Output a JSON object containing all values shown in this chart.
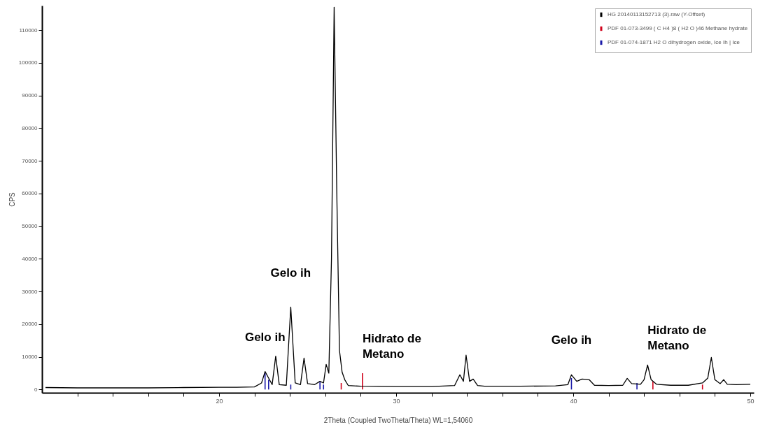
{
  "chart_data": {
    "type": "line",
    "xlabel": "2Theta (Coupled TwoTheta/Theta) WL=1,54060",
    "ylabel": "CPS",
    "xlim": [
      10.2,
      50
    ],
    "ylim": [
      -1000,
      117500
    ],
    "xticks": [
      {
        "value": 12,
        "label": null
      },
      {
        "value": 14,
        "label": null
      },
      {
        "value": 16,
        "label": null
      },
      {
        "value": 18,
        "label": null
      },
      20,
      {
        "value": 22,
        "label": null
      },
      {
        "value": 24,
        "label": null
      },
      {
        "value": 26,
        "label": null
      },
      {
        "value": 28,
        "label": null
      },
      30,
      {
        "value": 32,
        "label": null
      },
      {
        "value": 34,
        "label": null
      },
      {
        "value": 36,
        "label": null
      },
      {
        "value": 38,
        "label": null
      },
      40,
      {
        "value": 42,
        "label": null
      },
      {
        "value": 44,
        "label": null
      },
      {
        "value": 46,
        "label": null
      },
      {
        "value": 48,
        "label": null
      },
      50
    ],
    "yticks": [
      0,
      10000,
      20000,
      30000,
      40000,
      50000,
      60000,
      70000,
      80000,
      90000,
      100000,
      110000
    ],
    "grid": false,
    "legend": "top right",
    "marker": "none",
    "line_style": "solid",
    "series": [
      {
        "name": "HG 20140113152713 (3).raw (Y-Offset)",
        "color": "#000000",
        "x": [
          10.2,
          12,
          14,
          16,
          18,
          20,
          21,
          22,
          22.4,
          22.6,
          22.8,
          23.0,
          23.2,
          23.4,
          23.8,
          24.05,
          24.3,
          24.6,
          24.8,
          25.0,
          25.4,
          25.7,
          25.9,
          26.05,
          26.2,
          26.35,
          26.5,
          26.65,
          26.8,
          26.95,
          27.1,
          27.3,
          28,
          30,
          32,
          33.3,
          33.6,
          33.8,
          33.95,
          34.15,
          34.35,
          34.6,
          35,
          37,
          39,
          39.7,
          39.9,
          40.2,
          40.5,
          40.9,
          41.2,
          42,
          42.8,
          43.05,
          43.3,
          43.8,
          44.0,
          44.2,
          44.4,
          44.7,
          45.5,
          46.5,
          47.3,
          47.6,
          47.8,
          48.0,
          48.3,
          48.5,
          48.7,
          49.2,
          50
        ],
        "values": [
          600,
          500,
          500,
          500,
          600,
          700,
          700,
          800,
          2000,
          5500,
          3500,
          1500,
          10200,
          1500,
          1300,
          25200,
          2000,
          1500,
          9600,
          1800,
          1500,
          2500,
          2000,
          7700,
          5000,
          40000,
          117000,
          60000,
          12000,
          5300,
          3000,
          1200,
          1000,
          900,
          900,
          1200,
          4500,
          2500,
          10500,
          2500,
          3200,
          1200,
          1000,
          1000,
          1100,
          1500,
          4500,
          2500,
          3200,
          3000,
          1300,
          1200,
          1300,
          3400,
          1800,
          1600,
          3000,
          7500,
          3000,
          1600,
          1300,
          1300,
          2000,
          3500,
          9800,
          3000,
          1800,
          3000,
          1600,
          1500,
          1600
        ]
      },
      {
        "name": "PDF 01-073-3499 ( C H4 )8 ( H2 O )46 Methane hydrate",
        "color": "#d0021b",
        "type": "bar",
        "x": [
          26.9,
          28.1,
          44.5,
          47.3
        ],
        "values": [
          2000,
          5000,
          2500,
          1500
        ]
      },
      {
        "name": "PDF 01-074-1871 H2 O dihydrogen oxide, Ice Ih | Ice",
        "color": "#1a1aa8",
        "type": "bar",
        "x": [
          22.6,
          22.8,
          24.05,
          25.7,
          25.9,
          39.9,
          43.6
        ],
        "values": [
          5000,
          3000,
          1500,
          2500,
          1500,
          3500,
          2000
        ]
      }
    ],
    "annotations": [
      {
        "text": "Gelo ih",
        "x": 22.6,
        "y": 5500
      },
      {
        "text": "Gelo ih",
        "x": 24.05,
        "y": 25200
      },
      {
        "text": "Hidrato de\nMetano",
        "x": 28.1,
        "y": 5000
      },
      {
        "text": "Gelo ih",
        "x": 39.9,
        "y": 4500
      },
      {
        "text": "Hidrato de\nMetano",
        "x": 44.2,
        "y": 7500
      }
    ]
  }
}
